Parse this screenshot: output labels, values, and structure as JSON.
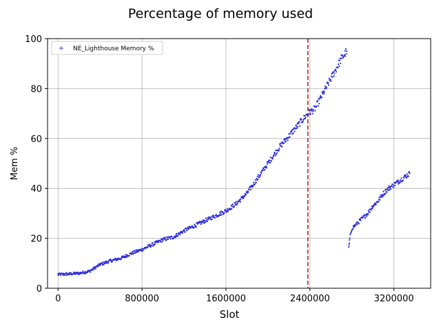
{
  "chart_data": {
    "type": "scatter",
    "title": "Percentage of memory used",
    "xlabel": "Slot",
    "ylabel": "Mem %",
    "xlim": [
      -100000,
      3550000
    ],
    "ylim": [
      0,
      100
    ],
    "xticks": [
      0,
      800000,
      1600000,
      2400000,
      3200000
    ],
    "xtick_labels": [
      "0",
      "800000",
      "1600000",
      "2400000",
      "3200000"
    ],
    "yticks": [
      0,
      20,
      40,
      60,
      80,
      100
    ],
    "ytick_labels": [
      "0",
      "20",
      "40",
      "60",
      "80",
      "100"
    ],
    "grid": true,
    "legend_position": "top-left",
    "vline": {
      "x": 2380000,
      "style": "dashed",
      "color": "#b22222"
    },
    "series": [
      {
        "name": "NE_Lighthouse Memory %",
        "color": "#2b2bdc",
        "marker": "+",
        "segments": [
          {
            "x": [
              0,
              100000,
              200000,
              300000,
              400000,
              500000,
              600000,
              700000,
              800000,
              900000,
              1000000,
              1100000,
              1200000,
              1300000,
              1400000,
              1500000,
              1600000,
              1700000,
              1800000,
              1900000,
              2000000,
              2100000,
              2200000,
              2300000,
              2380000,
              2450000,
              2550000,
              2650000,
              2700000,
              2750000
            ],
            "y": [
              5.5,
              5.7,
              6.0,
              6.8,
              9.5,
              11,
              12,
              14,
              15.5,
              17.5,
              19.5,
              20.5,
              23,
              25,
              27,
              29,
              31,
              34,
              38,
              44,
              50,
              56,
              61,
              66,
              70,
              72,
              80,
              88,
              92,
              95
            ]
          },
          {
            "x": [
              2770000,
              2780000,
              2800000,
              2850000,
              2900000,
              2950000,
              3000000,
              3050000,
              3100000,
              3150000,
              3200000,
              3250000,
              3300000,
              3350000
            ],
            "y": [
              16,
              20,
              24,
              26,
              28,
              30,
              33,
              35,
              38,
              40,
              41.5,
              43,
              44.5,
              46
            ]
          }
        ]
      }
    ]
  }
}
